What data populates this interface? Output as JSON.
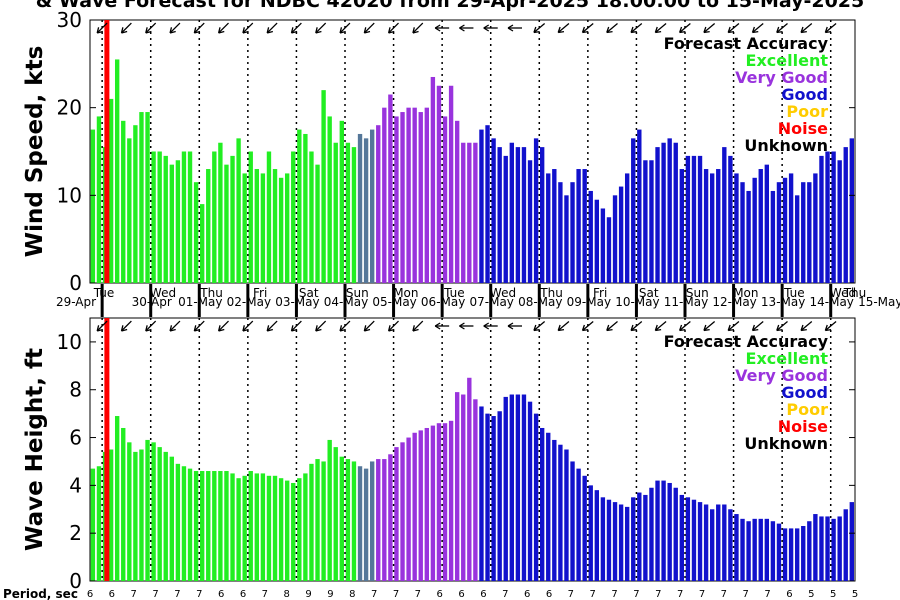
{
  "title": "& Wave Forecast for NDBC 42020 from 29-Apr-2025 18:00:00 to 15-May-2025",
  "colors": {
    "excellent": "#22ee22",
    "very_good": "#9933dd",
    "good": "#1111cc",
    "poor": "#ffcc00",
    "noise": "#ff0000",
    "unknown": "#000000",
    "transition": "#557799"
  },
  "legend": {
    "heading": "Forecast Accuracy",
    "entries": [
      {
        "label": "Excellent",
        "color": "#22ee22"
      },
      {
        "label": "Very Good",
        "color": "#9933dd"
      },
      {
        "label": "Good",
        "color": "#1111cc"
      },
      {
        "label": "Poor",
        "color": "#ffcc00"
      },
      {
        "label": "Noise",
        "color": "#ff0000"
      },
      {
        "label": "Unknown",
        "color": "#000000"
      }
    ]
  },
  "days": {
    "weekdays": [
      "Tue",
      "Wed",
      "Thu",
      "Fri",
      "Sat",
      "Sun",
      "Mon",
      "Tue",
      "Wed",
      "Thu",
      "Fri",
      "Sat",
      "Sun",
      "Mon",
      "Tue",
      "Wed",
      "Thu"
    ],
    "dates": [
      "29-Apr",
      "30-Apr",
      "01-May",
      "02-May",
      "03-May",
      "04-May",
      "05-May",
      "06-May",
      "07-May",
      "08-May",
      "09-May",
      "10-May",
      "11-May",
      "12-May",
      "13-May",
      "14-May",
      "15-May"
    ]
  },
  "period_label": "Period, sec",
  "period_values": [
    6,
    6,
    7,
    7,
    7,
    7,
    6,
    6,
    7,
    8,
    9,
    9,
    8,
    7,
    7,
    7,
    6,
    6,
    6,
    7,
    6,
    6,
    7,
    7,
    7,
    7,
    7,
    7,
    7,
    7,
    7,
    7,
    6,
    5,
    5,
    5
  ],
  "chart_data": [
    {
      "type": "bar",
      "ylabel": "Wind Speed, kts",
      "ylim": [
        0,
        30
      ],
      "yticks": [
        0,
        10,
        20,
        30
      ],
      "time_step_hours": 3,
      "category_sequence": [
        "Excellent",
        "Transition",
        "Very Good",
        "Good"
      ],
      "category_counts": [
        44,
        3,
        17,
        62
      ],
      "values": [
        17.5,
        19,
        15.5,
        21,
        25.5,
        18.5,
        16.5,
        18,
        19.5,
        19.5,
        15,
        15,
        14.5,
        13.5,
        14,
        15,
        15,
        11.5,
        9,
        13,
        15,
        16,
        13.5,
        14.5,
        16.5,
        12.5,
        15,
        13,
        12.5,
        15,
        13,
        12,
        12.5,
        15,
        17.5,
        17,
        15,
        13.5,
        22,
        19,
        16,
        18.5,
        16,
        15.5,
        17,
        16.5,
        17.5,
        18,
        20,
        21.5,
        19,
        19.5,
        20,
        20,
        19.5,
        20,
        23.5,
        22.5,
        19,
        22.5,
        18.5,
        16,
        16,
        16,
        17.5,
        18,
        16.5,
        15.5,
        14.5,
        16,
        15.5,
        15.5,
        14,
        16.5,
        15.5,
        12.5,
        13,
        11.5,
        10,
        11.5,
        13,
        13,
        10.5,
        9.5,
        8.5,
        7.5,
        10,
        11,
        12.5,
        16.5,
        17.5,
        14,
        14,
        15.5,
        16,
        16.5,
        16,
        13,
        14.5,
        14.5,
        14.5,
        13,
        12.5,
        13,
        15.5,
        14.5,
        12.5,
        11.5,
        10.5,
        12,
        13,
        13.5,
        10.5,
        11.5,
        12,
        12.5,
        10,
        11.5,
        11.5,
        12.5,
        14.5,
        15,
        15,
        14,
        15.5,
        16.5
      ]
    },
    {
      "type": "bar",
      "ylabel": "Wave Height, ft",
      "ylim": [
        0,
        11
      ],
      "yticks": [
        0,
        2,
        4,
        6,
        8,
        10
      ],
      "time_step_hours": 3,
      "category_sequence": [
        "Excellent",
        "Transition",
        "Very Good",
        "Good"
      ],
      "category_counts": [
        44,
        3,
        17,
        62
      ],
      "values": [
        4.7,
        4.8,
        5.4,
        5.5,
        6.9,
        6.4,
        5.8,
        5.4,
        5.5,
        5.9,
        5.8,
        5.6,
        5.4,
        5.2,
        4.9,
        4.8,
        4.7,
        4.6,
        4.6,
        4.6,
        4.6,
        4.6,
        4.6,
        4.5,
        4.3,
        4.4,
        4.6,
        4.5,
        4.5,
        4.4,
        4.4,
        4.3,
        4.2,
        4.1,
        4.3,
        4.5,
        4.9,
        5.1,
        5.0,
        5.9,
        5.6,
        5.2,
        5.1,
        5.0,
        4.8,
        4.7,
        5.0,
        5.1,
        5.1,
        5.3,
        5.6,
        5.8,
        6.0,
        6.2,
        6.3,
        6.4,
        6.5,
        6.6,
        6.6,
        6.7,
        7.9,
        7.8,
        8.5,
        7.6,
        7.3,
        7.0,
        6.9,
        7.1,
        7.7,
        7.8,
        7.8,
        7.8,
        7.5,
        7.0,
        6.4,
        6.2,
        5.9,
        5.7,
        5.5,
        5.0,
        4.7,
        4.4,
        4.0,
        3.8,
        3.5,
        3.4,
        3.3,
        3.2,
        3.1,
        3.5,
        3.7,
        3.6,
        3.9,
        4.2,
        4.2,
        4.1,
        3.9,
        3.6,
        3.5,
        3.4,
        3.3,
        3.2,
        3.0,
        3.2,
        3.2,
        3.0,
        2.8,
        2.6,
        2.5,
        2.6,
        2.6,
        2.6,
        2.5,
        2.4,
        2.2,
        2.2,
        2.2,
        2.3,
        2.5,
        2.8,
        2.7,
        2.7,
        2.6,
        2.7,
        3.0,
        3.3
      ]
    }
  ]
}
